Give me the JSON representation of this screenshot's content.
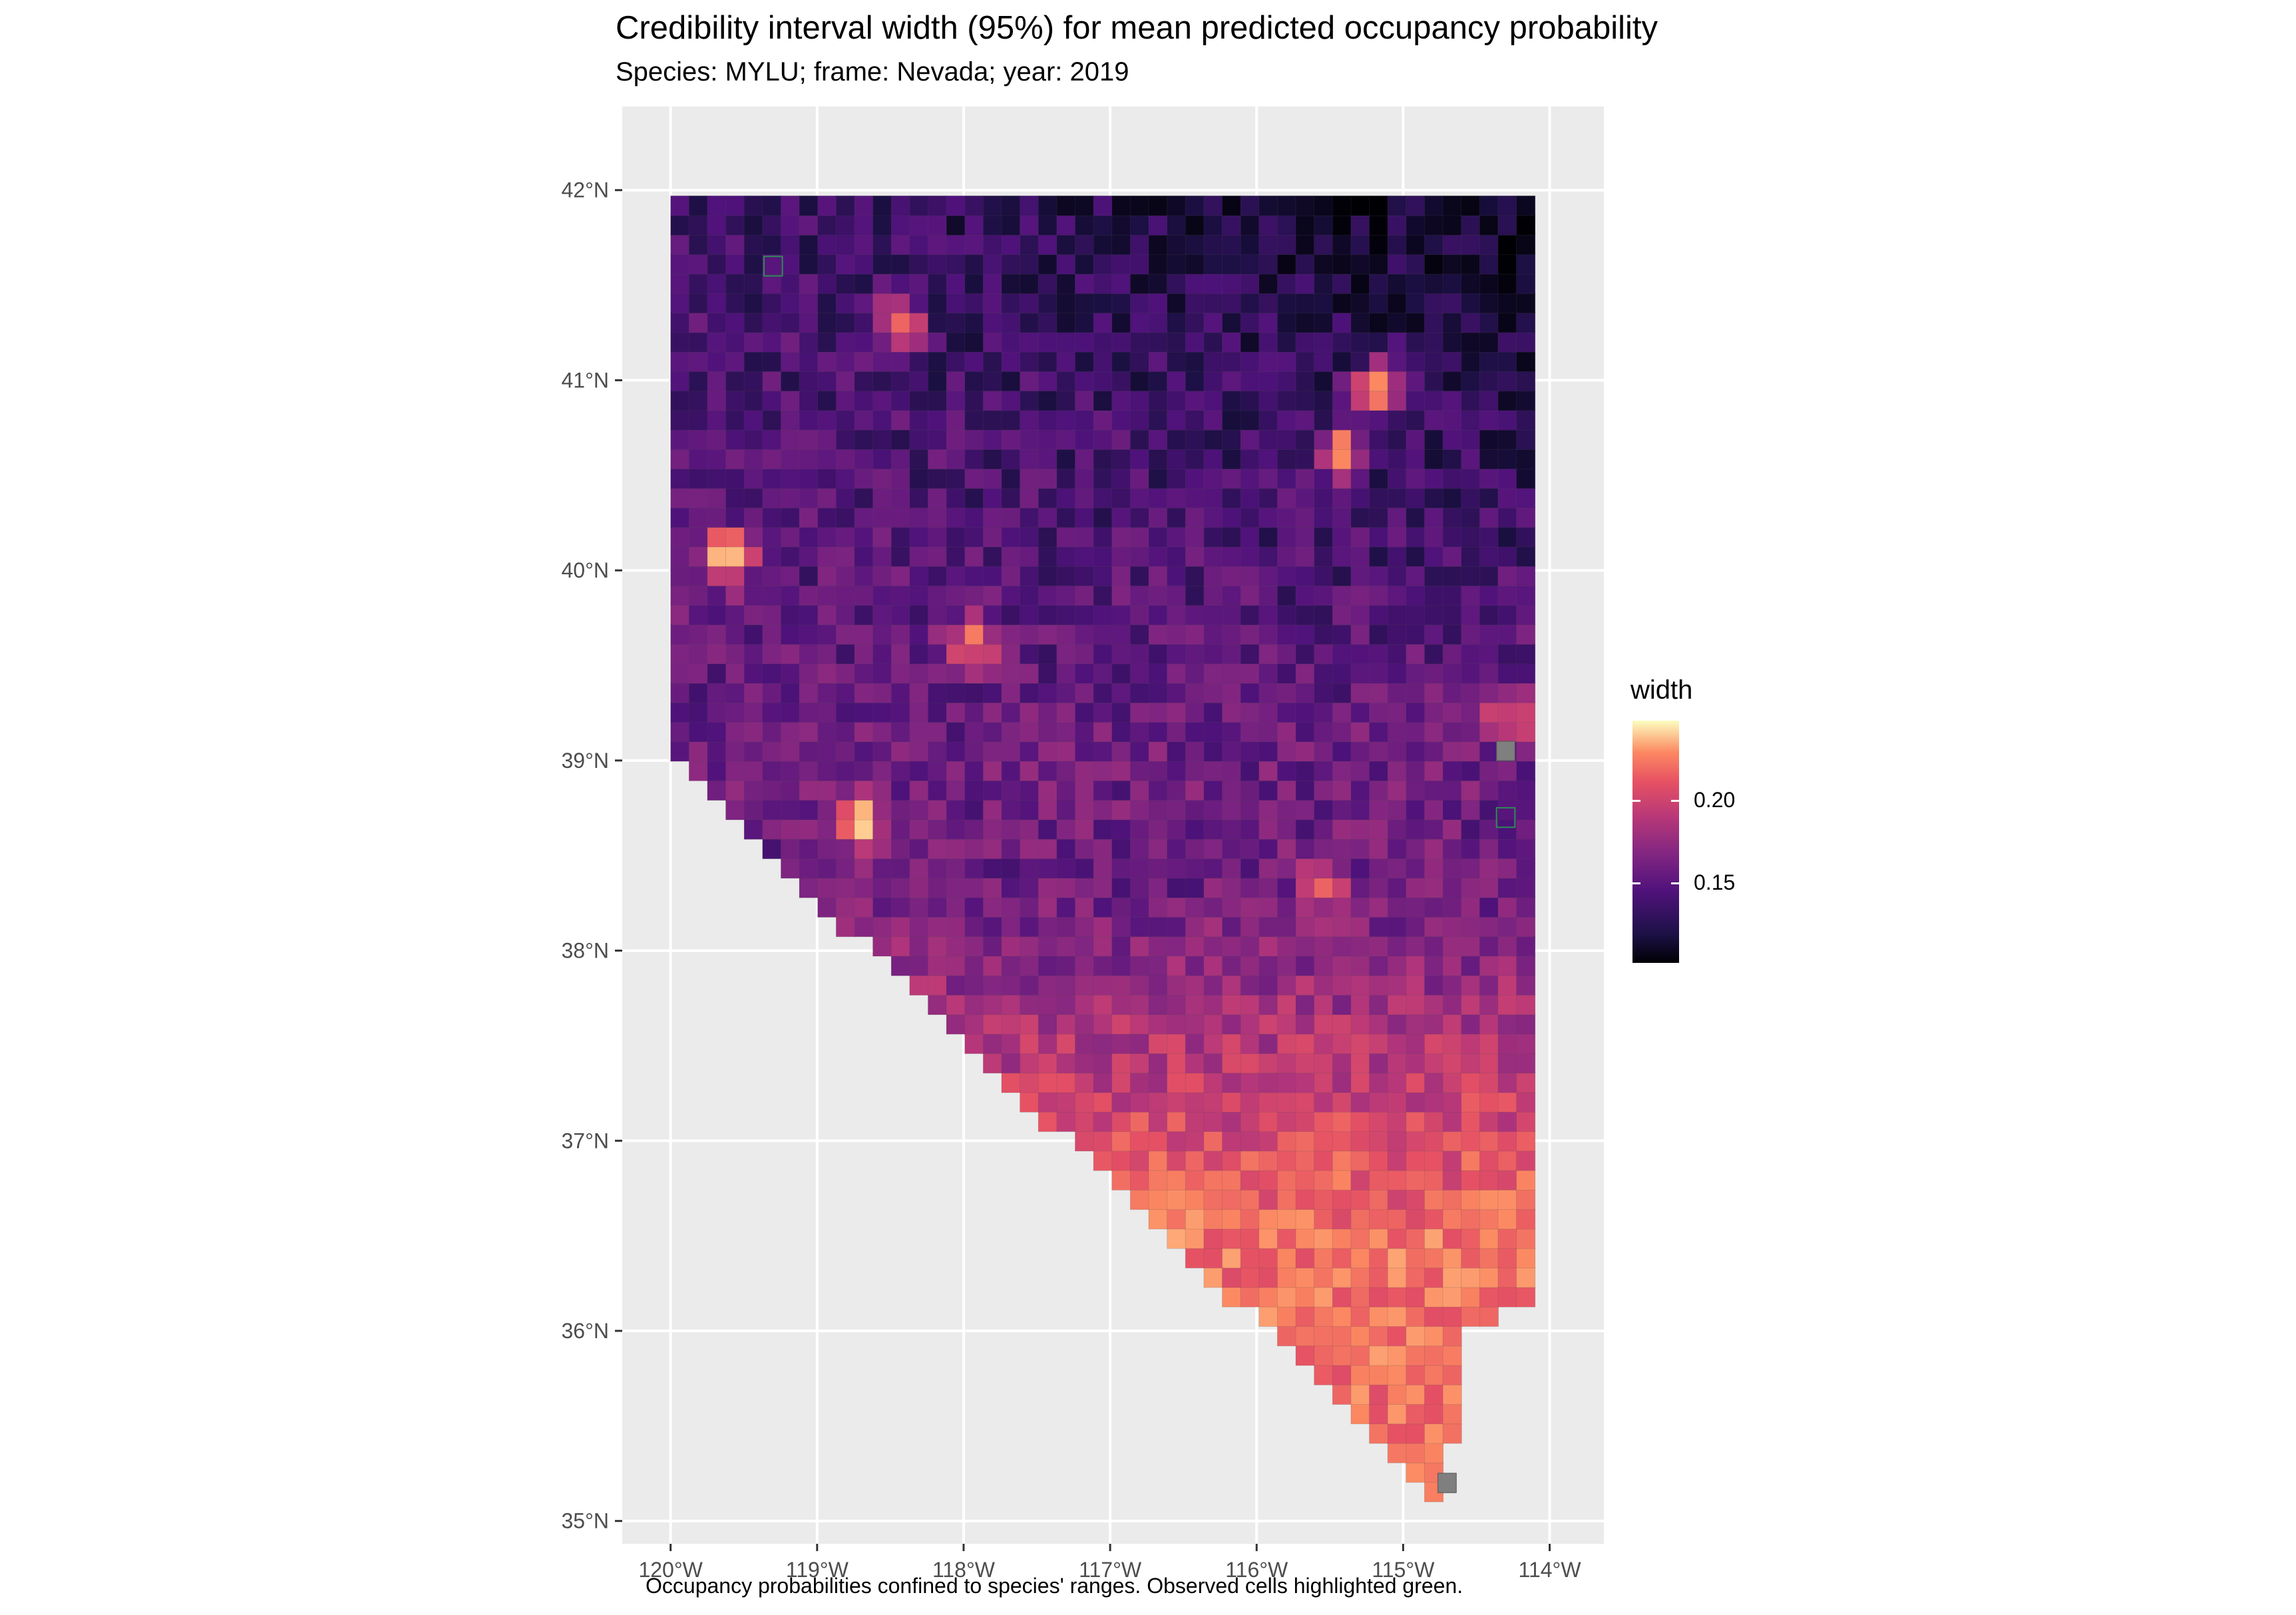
{
  "title": "Credibility interval width (95%) for mean predicted occupancy probability",
  "subtitle": "Species: MYLU; frame: Nevada; year: 2019",
  "caption": "Occupancy probabilities confined to species' ranges. Observed cells highlighted green.",
  "colors": {
    "panel_background": "#ebebeb",
    "grid": "#ffffff",
    "missing_cell": "#7f7f7f",
    "observed_outline": "#2e8b57",
    "palette": "magma"
  },
  "chart_data": {
    "type": "heatmap",
    "xaxis": {
      "ticks": [
        -120,
        -119,
        -118,
        -117,
        -116,
        -115,
        -114
      ],
      "tick_labels": [
        "120°W",
        "119°W",
        "118°W",
        "117°W",
        "116°W",
        "115°W",
        "114°W"
      ],
      "range": [
        -120.33,
        -113.63
      ]
    },
    "yaxis": {
      "ticks": [
        35,
        36,
        37,
        38,
        39,
        40,
        41,
        42
      ],
      "tick_labels": [
        "35°N",
        "36°N",
        "37°N",
        "38°N",
        "39°N",
        "40°N",
        "41°N",
        "42°N"
      ],
      "range": [
        34.88,
        42.44
      ]
    },
    "grid": true,
    "legend": {
      "title": "width",
      "position": "right",
      "breaks": [
        0.15,
        0.2
      ],
      "break_labels": [
        "0.15",
        "0.20"
      ],
      "range": [
        0.102,
        0.248
      ]
    },
    "value_field": "width",
    "region": "Nevada",
    "trends": {
      "north_east": 0.11,
      "north_west": 0.135,
      "central": 0.15,
      "southern_tip": 0.205
    },
    "hotspots": [
      {
        "lon": -119.62,
        "lat": 40.08,
        "width": 0.24
      },
      {
        "lon": -118.72,
        "lat": 38.68,
        "width": 0.235
      },
      {
        "lon": -118.45,
        "lat": 41.3,
        "width": 0.21
      },
      {
        "lon": -117.95,
        "lat": 39.62,
        "width": 0.21
      },
      {
        "lon": -115.18,
        "lat": 40.95,
        "width": 0.23
      },
      {
        "lon": -115.42,
        "lat": 40.62,
        "width": 0.215
      },
      {
        "lon": -115.55,
        "lat": 38.35,
        "width": 0.2
      },
      {
        "lon": -114.28,
        "lat": 39.22,
        "width": 0.195
      },
      {
        "lon": -115.0,
        "lat": 36.35,
        "width": 0.215
      },
      {
        "lon": -114.55,
        "lat": 36.6,
        "width": 0.21
      },
      {
        "lon": -116.5,
        "lat": 36.55,
        "width": 0.21
      }
    ],
    "missing_cells": [
      {
        "lon": -114.7,
        "lat": 35.2
      },
      {
        "lon": -114.3,
        "lat": 39.05
      }
    ],
    "observed_cells": [
      {
        "lon": -119.3,
        "lat": 41.6
      },
      {
        "lon": -114.3,
        "lat": 38.7
      }
    ]
  }
}
